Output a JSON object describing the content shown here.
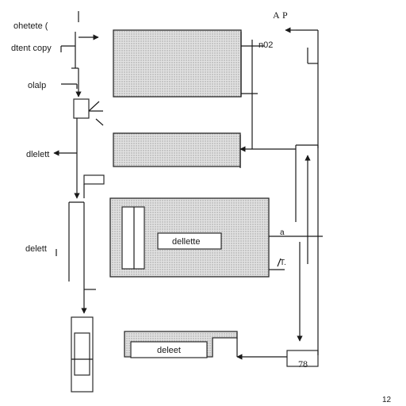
{
  "labels": {
    "top_left": "ohetete (",
    "copy": "dtent copy",
    "olalp": "olalp",
    "delete_1": "dlelett",
    "delete_2": "delett",
    "top_right_a": "A",
    "top_right_p": "P",
    "mid_right": "n02",
    "inner_box_1": "dellette",
    "inner_box_2": "deleet",
    "bottom_right": "78",
    "corner": "12",
    "tick_a": "a",
    "tick_t": "T."
  },
  "colors": {
    "stroke": "#1a1a1a",
    "stipple": "#c8c8c8",
    "background": "#ffffff"
  }
}
